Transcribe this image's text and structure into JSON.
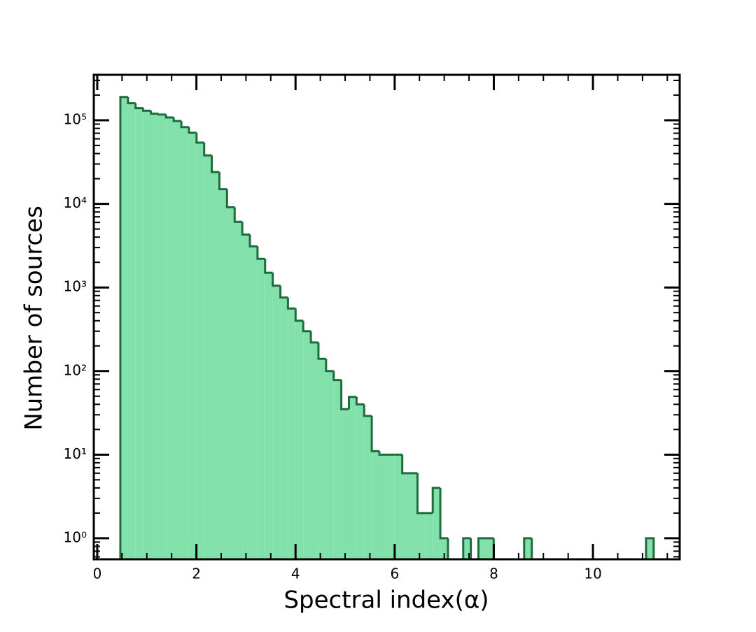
{
  "chart_data": {
    "type": "histogram",
    "xlabel": "Spectral index(α)",
    "ylabel": "Number of sources",
    "bins": [
      0.466,
      0.62,
      0.773,
      0.927,
      1.081,
      1.235,
      1.388,
      1.542,
      1.696,
      1.849,
      2.003,
      2.157,
      2.31,
      2.464,
      2.618,
      2.772,
      2.925,
      3.079,
      3.233,
      3.386,
      3.54,
      3.694,
      3.847,
      4.001,
      4.155,
      4.309,
      4.462,
      4.616,
      4.77,
      4.923,
      5.077,
      5.231,
      5.384,
      5.538,
      5.692,
      5.846,
      5.999,
      6.153,
      6.307,
      6.46,
      6.614,
      6.768,
      6.921,
      7.075,
      7.229,
      7.383,
      7.536,
      7.69,
      7.844,
      7.997,
      8.151,
      8.305,
      8.458,
      8.612,
      8.766,
      8.919,
      9.073,
      9.227,
      9.381,
      9.534,
      9.688,
      9.842,
      9.995,
      10.149,
      10.303,
      10.456,
      10.61,
      10.764,
      10.917,
      11.071,
      11.225
    ],
    "values": [
      190000,
      160000,
      140000,
      130000,
      120000,
      117000,
      108000,
      98000,
      83000,
      71000,
      54000,
      38000,
      24000,
      15000,
      9100,
      6100,
      4300,
      3100,
      2200,
      1500,
      1050,
      760,
      560,
      400,
      300,
      220,
      140,
      100,
      78,
      35,
      49,
      40,
      29,
      11,
      10,
      10,
      10,
      6,
      6,
      2,
      2,
      4,
      1,
      0,
      0,
      1,
      0,
      1,
      1,
      0,
      0,
      0,
      0,
      1,
      0,
      0,
      0,
      0,
      0,
      0,
      0,
      0,
      0,
      0,
      0,
      0,
      0,
      0,
      0,
      1
    ],
    "color": "#82e0aa",
    "edgecolor": "#1e6b3c",
    "xlim": [
      -0.07,
      11.75
    ],
    "xticks": [
      0,
      2,
      4,
      6,
      8,
      10
    ],
    "ylim": [
      0.56,
      350000
    ],
    "ylog": true,
    "yticks": [
      {
        "value": 1,
        "label": "10⁰"
      },
      {
        "value": 10,
        "label": "10¹"
      },
      {
        "value": 100,
        "label": "10²"
      },
      {
        "value": 1000,
        "label": "10³"
      },
      {
        "value": 10000,
        "label": "10⁴"
      },
      {
        "value": 100000,
        "label": "10⁵"
      }
    ],
    "minor_ticks": true
  }
}
